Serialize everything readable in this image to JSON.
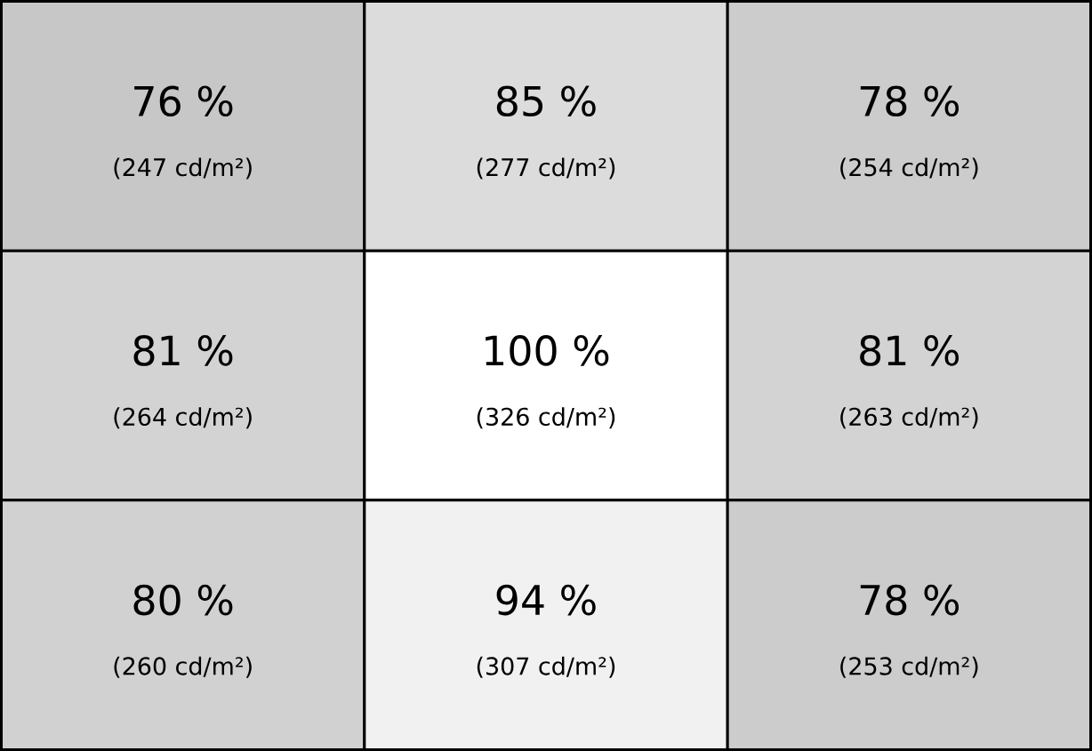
{
  "chart_data": {
    "type": "heatmap",
    "categories": [
      null,
      null,
      null
    ],
    "y_categories": [
      null,
      null,
      null
    ],
    "cells": [
      [
        76,
        85,
        78
      ],
      [
        81,
        100,
        81
      ],
      [
        80,
        94,
        78
      ]
    ],
    "cell_labels": [
      [
        "76 %",
        "85 %",
        "78 %"
      ],
      [
        "81 %",
        "100 %",
        "81 %"
      ],
      [
        "80 %",
        "94 %",
        "78 %"
      ]
    ],
    "annotations": [
      "(247 cd/m²)",
      "(277 cd/m²)",
      "(254 cd/m²)",
      "(264 cd/m²)",
      "(326 cd/m²)",
      "(263 cd/m²)",
      "(260 cd/m²)",
      "(307 cd/m²)",
      "(253 cd/m²)"
    ]
  }
}
